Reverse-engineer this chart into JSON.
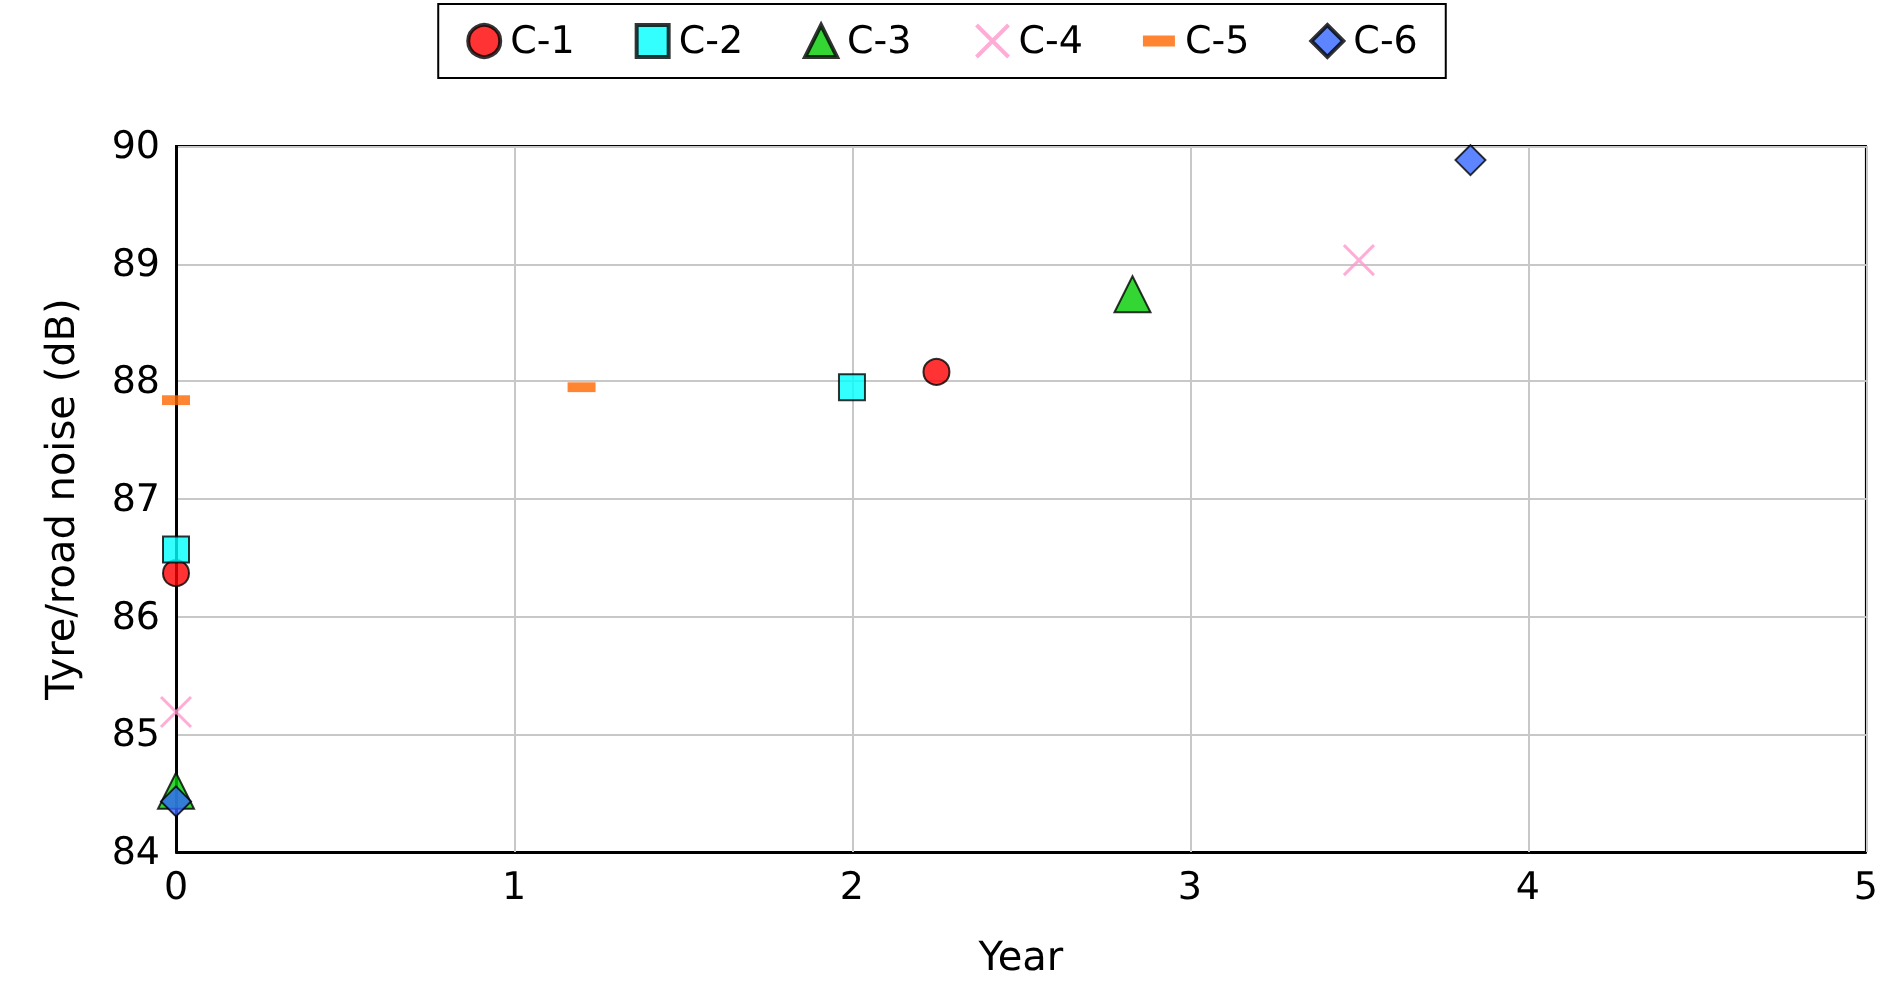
{
  "chart_data": {
    "type": "scatter",
    "xlabel": "Year",
    "ylabel": "Tyre/road noise (dB)",
    "xlim": [
      0,
      5
    ],
    "xticks": [
      0,
      1,
      2,
      3,
      4,
      5
    ],
    "ylim": [
      84,
      90
    ],
    "yticks": [
      84,
      85,
      86,
      87,
      88,
      89,
      90
    ],
    "grid": true,
    "legend": "top",
    "series": [
      {
        "name": "C-1",
        "color": "#ff0000",
        "marker": "circle",
        "x": [
          0,
          2.25
        ],
        "values": [
          86.37,
          88.08
        ]
      },
      {
        "name": "C-2",
        "color": "#00ffff",
        "marker": "square",
        "x": [
          0,
          2
        ],
        "values": [
          86.57,
          87.95
        ]
      },
      {
        "name": "C-3",
        "color": "#00cc00",
        "marker": "triangle",
        "x": [
          0,
          2.83
        ],
        "values": [
          84.52,
          88.74
        ]
      },
      {
        "name": "C-4",
        "color": "#ff99cc",
        "marker": "cross",
        "x": [
          0,
          3.5
        ],
        "values": [
          85.19,
          89.03
        ]
      },
      {
        "name": "C-5",
        "color": "#ff6600",
        "x": [
          0,
          1.2
        ],
        "values": [
          87.84,
          87.95
        ]
      },
      {
        "name": "C-6",
        "color": "#3366ff",
        "marker": "diamond",
        "x": [
          0,
          3.83
        ],
        "values": [
          84.43,
          89.88
        ]
      }
    ]
  }
}
